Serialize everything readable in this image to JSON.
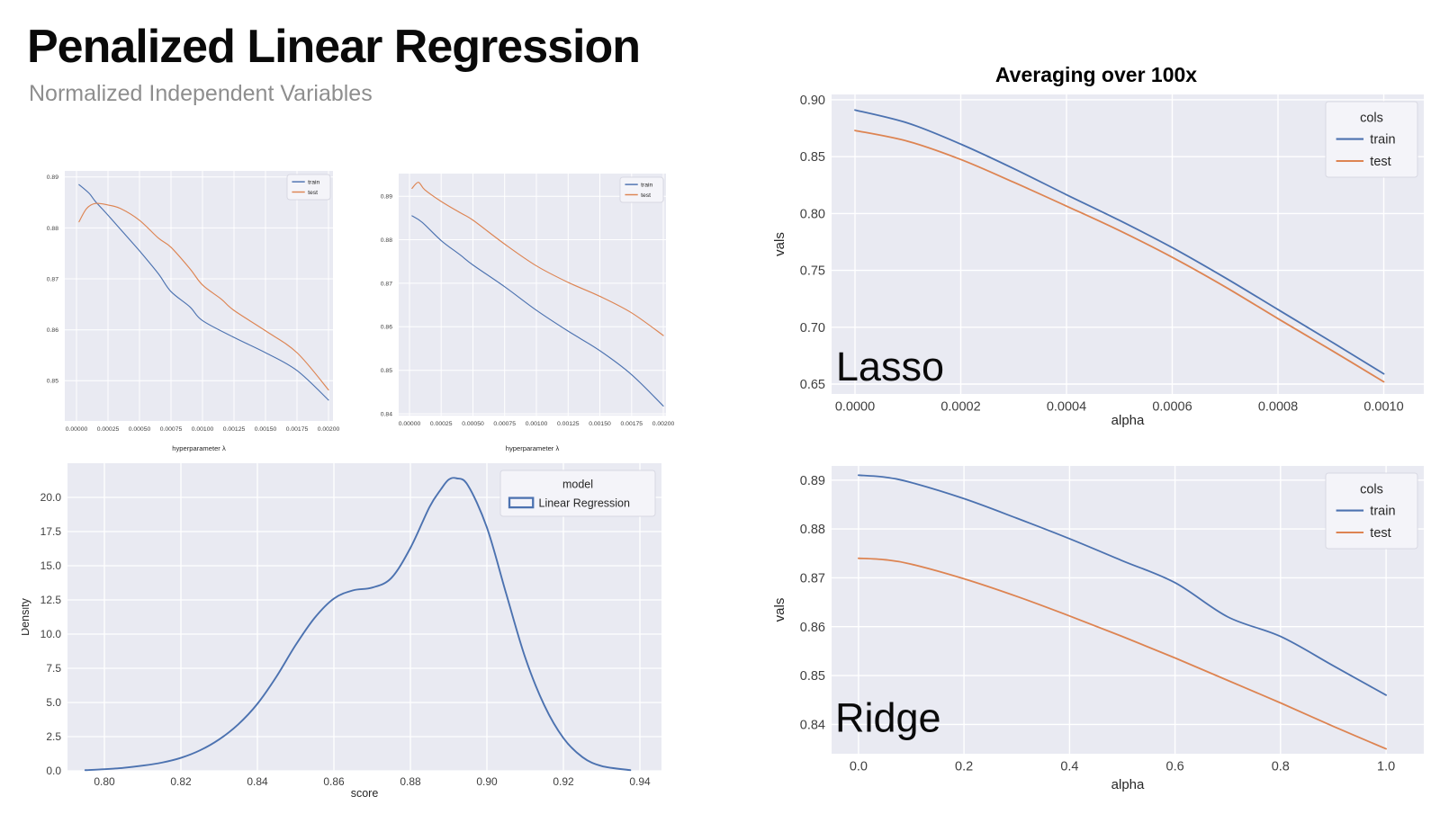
{
  "header": {
    "title": "Penalized Linear Regression",
    "subtitle": "Normalized Independent Variables"
  },
  "palette": {
    "train": "#4c72b0",
    "test": "#dd8452",
    "axes_bg": "#e9eaf2",
    "grid": "#ffffff",
    "tick_text": "#3f3f3f",
    "label_text": "#262626",
    "legend_bg": "#f4f4f9",
    "legend_border": "#d8d8e2",
    "annotation_text": "#0a0a0a",
    "title_text": "#000000",
    "subtitle_text": "#8e8e8e"
  },
  "chart_data": [
    {
      "key": "lambda-sweep-1",
      "type": "line",
      "title": "",
      "xlabel": "hyperparameter λ",
      "ylabel": "",
      "xlim": [
        -9.29e-05,
        0.0020357
      ],
      "ylim": [
        0.8421,
        0.8912
      ],
      "grid": true,
      "xticks": {
        "values": [
          0,
          0.00025,
          0.0005,
          0.00075,
          0.001,
          0.00125,
          0.0015,
          0.00175,
          0.002
        ],
        "labels": [
          "0.00000",
          "0.00025",
          "0.00050",
          "0.00075",
          "0.00100",
          "0.00125",
          "0.00150",
          "0.00175",
          "0.00200"
        ]
      },
      "yticks": {
        "values": [
          0.85,
          0.86,
          0.87,
          0.88,
          0.89
        ],
        "labels": [
          "0.85",
          "0.86",
          "0.87",
          "0.88",
          "0.89"
        ]
      },
      "legend": {
        "title": "",
        "position": "upper right",
        "entries": [
          {
            "label": "train",
            "color_key": "train",
            "swatch": "line"
          },
          {
            "label": "test",
            "color_key": "test",
            "swatch": "line"
          }
        ]
      },
      "series": [
        {
          "name": "train",
          "color_key": "train",
          "x": [
            2e-05,
            0.0001,
            0.00015,
            0.00025,
            0.0004,
            0.0005,
            0.00065,
            0.00075,
            0.0009,
            0.001,
            0.00125,
            0.0015,
            0.00175,
            0.002
          ],
          "y": [
            0.8885,
            0.8868,
            0.8852,
            0.8825,
            0.8783,
            0.8755,
            0.871,
            0.8675,
            0.8645,
            0.8618,
            0.8585,
            0.8555,
            0.852,
            0.8462
          ]
        },
        {
          "name": "test",
          "color_key": "test",
          "x": [
            2e-05,
            8e-05,
            0.00015,
            0.00025,
            0.00035,
            0.0005,
            0.00065,
            0.00075,
            0.0009,
            0.001,
            0.00115,
            0.00125,
            0.0015,
            0.00175,
            0.002
          ],
          "y": [
            0.8812,
            0.8838,
            0.8848,
            0.8845,
            0.8838,
            0.8815,
            0.878,
            0.8762,
            0.872,
            0.8688,
            0.866,
            0.8638,
            0.8598,
            0.8555,
            0.8482
          ]
        }
      ]
    },
    {
      "key": "lambda-sweep-2",
      "type": "line",
      "title": "",
      "xlabel": "hyperparameter λ",
      "ylabel": "",
      "xlim": [
        -8.5e-05,
        0.0020212
      ],
      "ylim": [
        0.8396,
        0.8952
      ],
      "grid": true,
      "xticks": {
        "values": [
          0,
          0.00025,
          0.0005,
          0.00075,
          0.001,
          0.00125,
          0.0015,
          0.00175,
          0.002
        ],
        "labels": [
          "0.00000",
          "0.00025",
          "0.00050",
          "0.00075",
          "0.00100",
          "0.00125",
          "0.00150",
          "0.00175",
          "0.00200"
        ]
      },
      "yticks": {
        "values": [
          0.84,
          0.85,
          0.86,
          0.87,
          0.88,
          0.89
        ],
        "labels": [
          "0.84",
          "0.85",
          "0.86",
          "0.87",
          "0.88",
          "0.89"
        ]
      },
      "legend": {
        "title": "",
        "position": "upper right",
        "entries": [
          {
            "label": "train",
            "color_key": "train",
            "swatch": "line"
          },
          {
            "label": "test",
            "color_key": "test",
            "swatch": "line"
          }
        ]
      },
      "series": [
        {
          "name": "train",
          "color_key": "train",
          "x": [
            2e-05,
            0.0001,
            0.00025,
            0.0004,
            0.0005,
            0.00075,
            0.001,
            0.00125,
            0.0015,
            0.00175,
            0.002
          ],
          "y": [
            0.8855,
            0.884,
            0.8798,
            0.8765,
            0.8742,
            0.8692,
            0.8638,
            0.859,
            0.8545,
            0.849,
            0.8418
          ]
        },
        {
          "name": "test",
          "color_key": "test",
          "x": [
            2e-05,
            7e-05,
            0.00012,
            0.00025,
            0.0004,
            0.0005,
            0.00075,
            0.001,
            0.00125,
            0.0015,
            0.00175,
            0.002
          ],
          "y": [
            0.8918,
            0.8932,
            0.8915,
            0.8888,
            0.8862,
            0.8845,
            0.879,
            0.874,
            0.8702,
            0.867,
            0.8632,
            0.858
          ]
        }
      ]
    },
    {
      "key": "score-density",
      "type": "line",
      "title": "",
      "xlabel": "score",
      "ylabel": "Density",
      "xlim": [
        0.79035,
        0.94565
      ],
      "ylim": [
        0,
        22.5
      ],
      "grid": true,
      "xticks": {
        "values": [
          0.8,
          0.82,
          0.84,
          0.86,
          0.88,
          0.9,
          0.92,
          0.94
        ],
        "labels": [
          "0.80",
          "0.82",
          "0.84",
          "0.86",
          "0.88",
          "0.90",
          "0.92",
          "0.94"
        ]
      },
      "yticks": {
        "values": [
          0,
          2.5,
          5.0,
          7.5,
          10.0,
          12.5,
          15.0,
          17.5,
          20.0
        ],
        "labels": [
          "0.0",
          "2.5",
          "5.0",
          "7.5",
          "10.0",
          "12.5",
          "15.0",
          "17.5",
          "20.0"
        ]
      },
      "legend": {
        "title": "model",
        "position": "upper right",
        "entries": [
          {
            "label": "Linear Regression",
            "color_key": "train",
            "swatch": "rect"
          }
        ]
      },
      "series": [
        {
          "name": "Linear Regression",
          "color_key": "train",
          "x": [
            0.795,
            0.8,
            0.805,
            0.81,
            0.815,
            0.82,
            0.825,
            0.83,
            0.835,
            0.84,
            0.845,
            0.85,
            0.855,
            0.86,
            0.865,
            0.87,
            0.875,
            0.88,
            0.885,
            0.888,
            0.89,
            0.892,
            0.895,
            0.9,
            0.905,
            0.91,
            0.915,
            0.92,
            0.925,
            0.93,
            0.9375
          ],
          "y": [
            0.05,
            0.12,
            0.22,
            0.38,
            0.6,
            0.95,
            1.5,
            2.3,
            3.4,
            4.9,
            6.9,
            9.2,
            11.2,
            12.6,
            13.2,
            13.4,
            14.1,
            16.3,
            19.3,
            20.6,
            21.3,
            21.4,
            20.9,
            17.8,
            13.0,
            8.3,
            4.8,
            2.4,
            1.0,
            0.35,
            0.05
          ]
        }
      ]
    },
    {
      "key": "lasso-alpha-sweep",
      "type": "line",
      "title": "Averaging over 100x",
      "xlabel": "alpha",
      "ylabel": "vals",
      "xlim": [
        -4.43e-05,
        0.0010757
      ],
      "ylim": [
        0.6413,
        0.9047
      ],
      "grid": true,
      "annotation": {
        "text": "Lasso",
        "x": -3.6e-05,
        "y": 0.653,
        "size": 45
      },
      "xticks": {
        "values": [
          0,
          0.0002,
          0.0004,
          0.0006,
          0.0008,
          0.001
        ],
        "labels": [
          "0.0000",
          "0.0002",
          "0.0004",
          "0.0006",
          "0.0008",
          "0.0010"
        ]
      },
      "yticks": {
        "values": [
          0.65,
          0.7,
          0.75,
          0.8,
          0.85,
          0.9
        ],
        "labels": [
          "0.65",
          "0.70",
          "0.75",
          "0.80",
          "0.85",
          "0.90"
        ]
      },
      "legend": {
        "title": "cols",
        "position": "upper right",
        "entries": [
          {
            "label": "train",
            "color_key": "train",
            "swatch": "line"
          },
          {
            "label": "test",
            "color_key": "test",
            "swatch": "line"
          }
        ]
      },
      "series": [
        {
          "name": "train",
          "color_key": "train",
          "x": [
            0,
            0.0001,
            0.0002,
            0.0003,
            0.0004,
            0.0005,
            0.0006,
            0.0007,
            0.0008,
            0.0009,
            0.001
          ],
          "y": [
            0.891,
            0.8795,
            0.861,
            0.8395,
            0.8165,
            0.794,
            0.77,
            0.7435,
            0.7155,
            0.6875,
            0.659
          ]
        },
        {
          "name": "test",
          "color_key": "test",
          "x": [
            0,
            0.0001,
            0.0002,
            0.0003,
            0.0004,
            0.0005,
            0.0006,
            0.0007,
            0.0008,
            0.0009,
            0.001
          ],
          "y": [
            0.873,
            0.8635,
            0.8475,
            0.8275,
            0.8065,
            0.785,
            0.7615,
            0.7355,
            0.7075,
            0.68,
            0.652
          ]
        }
      ]
    },
    {
      "key": "ridge-alpha-sweep",
      "type": "line",
      "title": "",
      "xlabel": "alpha",
      "ylabel": "vals",
      "xlim": [
        -0.051,
        1.0715
      ],
      "ylim": [
        0.834,
        0.8929
      ],
      "grid": true,
      "annotation": {
        "text": "Ridge",
        "x": -0.0442,
        "y": 0.8385,
        "size": 45
      },
      "xticks": {
        "values": [
          0,
          0.2,
          0.4,
          0.6,
          0.8,
          1.0
        ],
        "labels": [
          "0.0",
          "0.2",
          "0.4",
          "0.6",
          "0.8",
          "1.0"
        ]
      },
      "yticks": {
        "values": [
          0.84,
          0.85,
          0.86,
          0.87,
          0.88,
          0.89
        ],
        "labels": [
          "0.84",
          "0.85",
          "0.86",
          "0.87",
          "0.88",
          "0.89"
        ]
      },
      "legend": {
        "title": "cols",
        "position": "upper right",
        "entries": [
          {
            "label": "train",
            "color_key": "train",
            "swatch": "line"
          },
          {
            "label": "test",
            "color_key": "test",
            "swatch": "line"
          }
        ]
      },
      "series": [
        {
          "name": "train",
          "color_key": "train",
          "x": [
            0,
            0.05,
            0.1,
            0.2,
            0.3,
            0.4,
            0.5,
            0.6,
            0.7,
            0.8,
            0.9,
            1.0
          ],
          "y": [
            0.891,
            0.8906,
            0.8895,
            0.8862,
            0.8822,
            0.878,
            0.8735,
            0.869,
            0.862,
            0.858,
            0.852,
            0.846
          ]
        },
        {
          "name": "test",
          "color_key": "test",
          "x": [
            0,
            0.05,
            0.1,
            0.2,
            0.3,
            0.4,
            0.5,
            0.6,
            0.7,
            0.8,
            0.9,
            1.0
          ],
          "y": [
            0.874,
            0.8737,
            0.8728,
            0.8698,
            0.8662,
            0.8622,
            0.858,
            0.8536,
            0.849,
            0.8444,
            0.8396,
            0.835
          ]
        }
      ]
    }
  ]
}
